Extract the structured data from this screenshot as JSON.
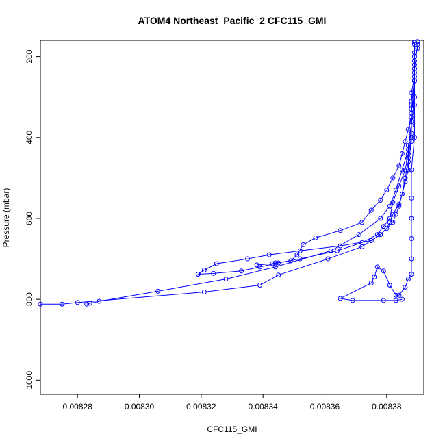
{
  "chart_data": {
    "type": "line",
    "title": "ATOM4 Northeast_Pacific_2 CFC115_GMI",
    "xlabel": "CFC115_GMI",
    "ylabel": "Pressure (mbar)",
    "xlim": [
      0.008268,
      0.008392
    ],
    "ylim": [
      1035,
      160
    ],
    "y_reversed": true,
    "grid": false,
    "x_ticks": [
      0.00828,
      0.0083,
      0.00832,
      0.00834,
      0.00836,
      0.00838
    ],
    "x_tick_labels": [
      "0.00828",
      "0.00830",
      "0.00832",
      "0.00834",
      "0.00836",
      "0.00838"
    ],
    "y_ticks": [
      200,
      400,
      600,
      800,
      1000
    ],
    "y_tick_labels": [
      "200",
      "400",
      "600",
      "800",
      "1000"
    ],
    "color": "#0000ff",
    "marker": "open-circle",
    "series": [
      {
        "x": [
          0.00839,
          0.00839,
          0.008389,
          0.008389,
          0.008389,
          0.008389,
          0.008388,
          0.008388,
          0.008388,
          0.008387,
          0.008387,
          0.008387,
          0.008386,
          0.008385,
          0.008384,
          0.008382,
          0.008381,
          0.00838,
          0.008378,
          0.008375,
          0.008365,
          0.008352,
          0.008342,
          0.008335,
          0.008325,
          0.008321,
          0.008319
        ],
        "y": [
          163,
          180,
          200,
          230,
          260,
          300,
          330,
          360,
          390,
          420,
          450,
          480,
          510,
          540,
          565,
          590,
          610,
          625,
          640,
          655,
          668,
          680,
          690,
          700,
          712,
          728,
          738
        ]
      },
      {
        "x": [
          0.008389,
          0.008389,
          0.008389,
          0.008389,
          0.008388,
          0.008388,
          0.008388,
          0.008387,
          0.008386,
          0.008385,
          0.008384,
          0.008382,
          0.00838,
          0.008378,
          0.008375,
          0.008372,
          0.008365,
          0.008357,
          0.008353,
          0.008351,
          0.008349,
          0.008344,
          0.008343,
          0.008338
        ],
        "y": [
          165,
          190,
          220,
          250,
          290,
          320,
          350,
          380,
          410,
          440,
          470,
          500,
          530,
          555,
          580,
          610,
          630,
          648,
          665,
          690,
          705,
          710,
          712,
          715
        ]
      },
      {
        "x": [
          0.008389,
          0.008389,
          0.008389,
          0.008388,
          0.008388,
          0.008388,
          0.008387,
          0.008386,
          0.008384,
          0.008382,
          0.008381,
          0.008379,
          0.008377,
          0.008372,
          0.008364,
          0.008352,
          0.008345,
          0.008339,
          0.008333,
          0.008324,
          0.008319
        ],
        "y": [
          165,
          210,
          260,
          310,
          360,
          400,
          440,
          480,
          520,
          560,
          600,
          620,
          640,
          660,
          680,
          700,
          710,
          720,
          730,
          736,
          738
        ]
      },
      {
        "x": [
          0.00839,
          0.008389,
          0.008389,
          0.008388,
          0.008387,
          0.008385,
          0.008383,
          0.008381,
          0.008378,
          0.008371,
          0.008362,
          0.008344,
          0.008328,
          0.008306,
          0.008287,
          0.008284,
          0.008283
        ],
        "y": [
          170,
          230,
          300,
          370,
          430,
          480,
          530,
          570,
          600,
          640,
          680,
          720,
          750,
          780,
          805,
          810,
          812
        ]
      },
      {
        "x": [
          0.008389,
          0.008389,
          0.008388,
          0.008388,
          0.008387,
          0.008386,
          0.008385,
          0.008384,
          0.008383,
          0.008382,
          0.008378,
          0.008372,
          0.008361,
          0.008345,
          0.008339,
          0.008321,
          0.00828,
          0.008275,
          0.008268
        ],
        "y": [
          170,
          260,
          340,
          410,
          460,
          500,
          540,
          570,
          590,
          610,
          640,
          670,
          700,
          740,
          765,
          782,
          808,
          812,
          812
        ]
      },
      {
        "x": [
          0.008389,
          0.008389,
          0.008389,
          0.008389,
          0.008388,
          0.008388,
          0.008388,
          0.008388,
          0.008388,
          0.008388,
          0.008387,
          0.008386,
          0.008384,
          0.008383,
          0.008381,
          0.008379,
          0.008377,
          0.008376,
          0.008375,
          0.008365,
          0.008369,
          0.008379,
          0.008383,
          0.008385
        ],
        "y": [
          165,
          240,
          320,
          400,
          480,
          550,
          600,
          650,
          700,
          738,
          750,
          770,
          790,
          790,
          765,
          730,
          720,
          745,
          760,
          798,
          803,
          803,
          803,
          800
        ]
      }
    ]
  }
}
